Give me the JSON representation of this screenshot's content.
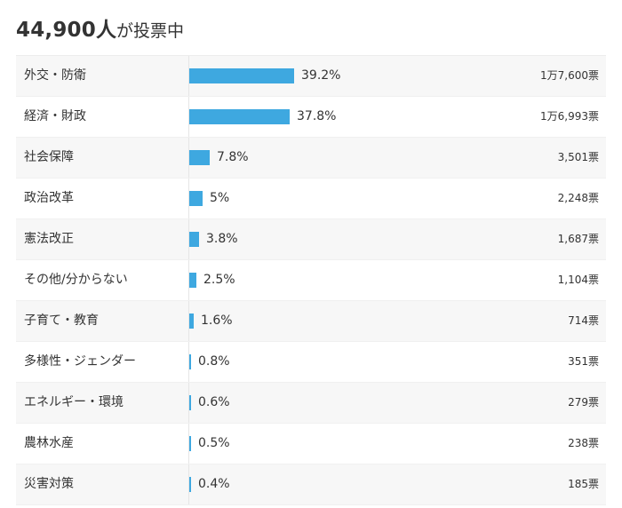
{
  "header": {
    "count": "44,900",
    "unit": "人",
    "suffix": "が投票中"
  },
  "colors": {
    "bar": "#3ea8e0",
    "row_alt_bg": "#f7f7f7"
  },
  "rows": [
    {
      "label": "外交・防衛",
      "percent_text": "39.2%",
      "percent": 39.2,
      "votes": "1万7,600票"
    },
    {
      "label": "経済・財政",
      "percent_text": "37.8%",
      "percent": 37.8,
      "votes": "1万6,993票"
    },
    {
      "label": "社会保障",
      "percent_text": "7.8%",
      "percent": 7.8,
      "votes": "3,501票"
    },
    {
      "label": "政治改革",
      "percent_text": "5%",
      "percent": 5,
      "votes": "2,248票"
    },
    {
      "label": "憲法改正",
      "percent_text": "3.8%",
      "percent": 3.8,
      "votes": "1,687票"
    },
    {
      "label": "その他/分からない",
      "percent_text": "2.5%",
      "percent": 2.5,
      "votes": "1,104票"
    },
    {
      "label": "子育て・教育",
      "percent_text": "1.6%",
      "percent": 1.6,
      "votes": "714票"
    },
    {
      "label": "多様性・ジェンダー",
      "percent_text": "0.8%",
      "percent": 0.8,
      "votes": "351票"
    },
    {
      "label": "エネルギー・環境",
      "percent_text": "0.6%",
      "percent": 0.6,
      "votes": "279票"
    },
    {
      "label": "農林水産",
      "percent_text": "0.5%",
      "percent": 0.5,
      "votes": "238票"
    },
    {
      "label": "災害対策",
      "percent_text": "0.4%",
      "percent": 0.4,
      "votes": "185票"
    }
  ]
}
